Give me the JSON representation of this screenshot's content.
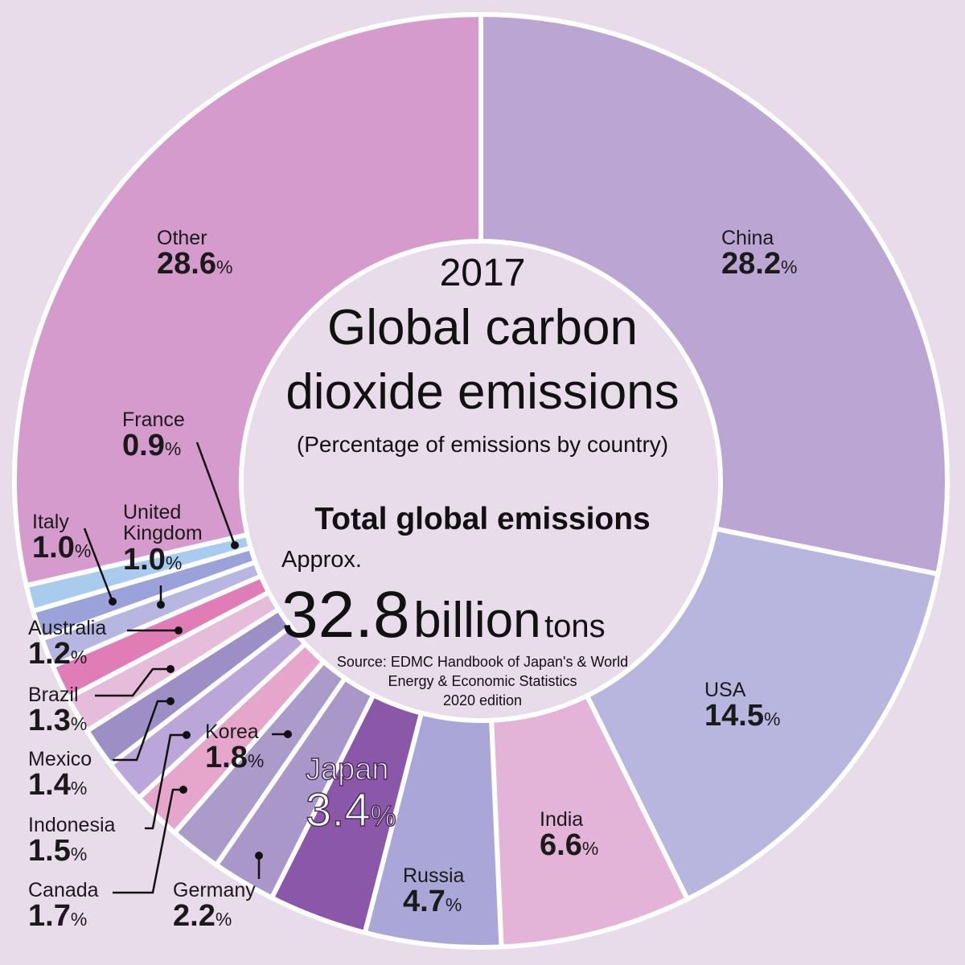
{
  "chart_data": {
    "type": "donut",
    "year": "2017",
    "title_lines": [
      "Global carbon",
      "dioxide emissions"
    ],
    "subtitle": "(Percentage of emissions by country)",
    "total_heading": "Total global emissions",
    "total_prefix": "Approx.",
    "total_value": "32.8",
    "total_unit_big": "billion",
    "total_unit_small": "tons",
    "source_lines": [
      "Source: EDMC Handbook of Japan's & World",
      "Energy & Economic Statistics",
      "2020 edition"
    ],
    "unit": "%",
    "categories": [
      "China",
      "USA",
      "India",
      "Russia",
      "Japan",
      "Germany",
      "Korea",
      "Canada",
      "Indonesia",
      "Mexico",
      "Brazil",
      "Australia",
      "United Kingdom",
      "Italy",
      "France",
      "Other"
    ],
    "values": [
      28.2,
      14.5,
      6.6,
      4.7,
      3.4,
      2.2,
      1.8,
      1.7,
      1.5,
      1.4,
      1.3,
      1.2,
      1.0,
      1.0,
      0.9,
      28.6
    ],
    "value_labels": [
      "28.2",
      "14.5",
      "6.6",
      "4.7",
      "3.4",
      "2.2",
      "1.8",
      "1.7",
      "1.5",
      "1.4",
      "1.3",
      "1.2",
      "1.0",
      "1.0",
      "0.9",
      "28.6"
    ],
    "colors": [
      "#bba6d3",
      "#b8b6de",
      "#e3b4d8",
      "#aaa6d8",
      "#8a57a9",
      "#a997c9",
      "#ab9bcb",
      "#e6a6cb",
      "#baa6d9",
      "#9d8fc6",
      "#e5bcd9",
      "#e07db6",
      "#b6b6e1",
      "#9aa2d9",
      "#a9cbee",
      "#d69bcd"
    ]
  }
}
